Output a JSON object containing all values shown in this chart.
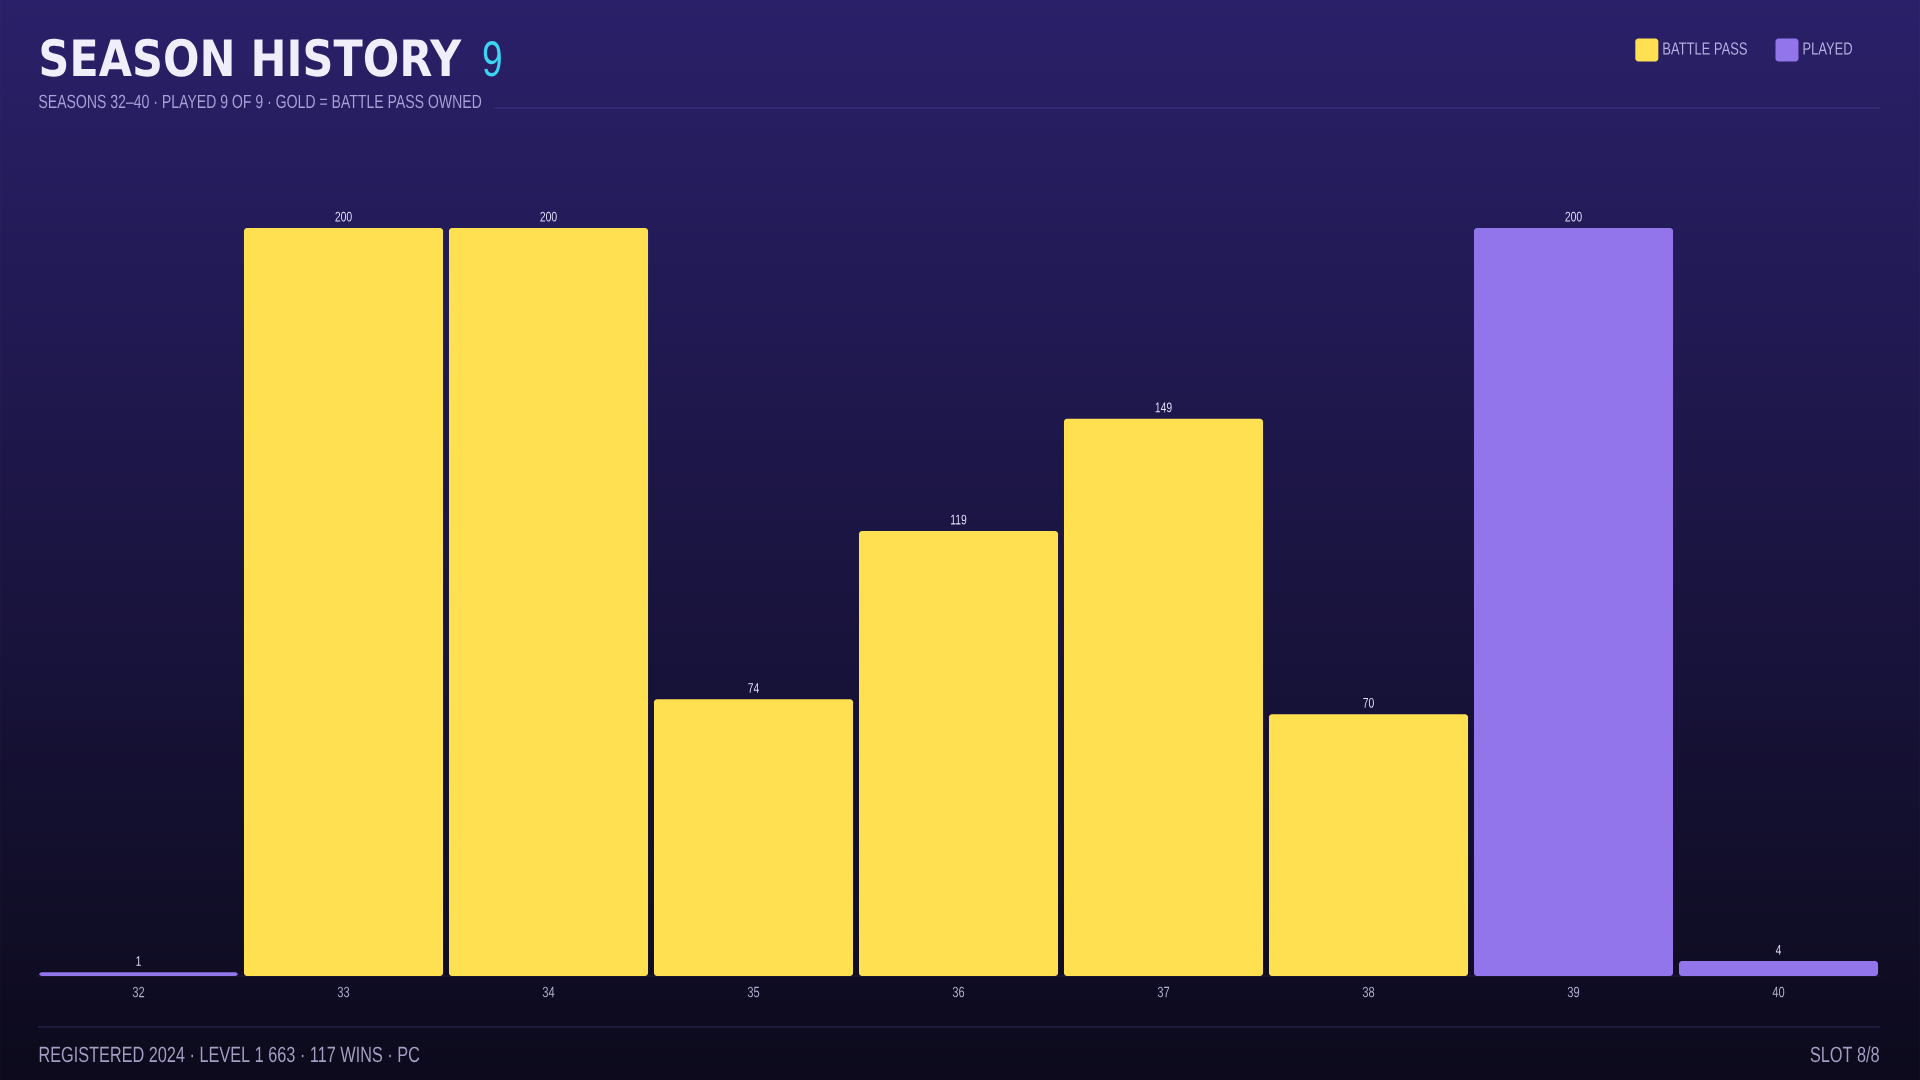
{
  "chart_data": {
    "type": "bar",
    "title": "SEASON HISTORY",
    "subtitle": "SEASONS 32–40 · PLAYED 9 OF 9 · GOLD = BATTLE PASS OWNED",
    "categories": [
      "32",
      "33",
      "34",
      "35",
      "36",
      "37",
      "38",
      "39",
      "40"
    ],
    "series": [
      {
        "name": "BATTLE PASS",
        "color": "#ffe050",
        "values": [
          null,
          200,
          200,
          74,
          119,
          149,
          70,
          null,
          null
        ]
      },
      {
        "name": "PLAYED",
        "color": "#9275ea",
        "values": [
          1,
          null,
          null,
          null,
          null,
          null,
          null,
          200,
          4
        ]
      }
    ],
    "stacked": true,
    "data_labels": true,
    "legend": "top right",
    "annotations": [
      "9",
      "REGISTERED 2024 · LEVEL 1 663 · 117 WINS · PC",
      "SLOT 8/8"
    ]
  }
}
